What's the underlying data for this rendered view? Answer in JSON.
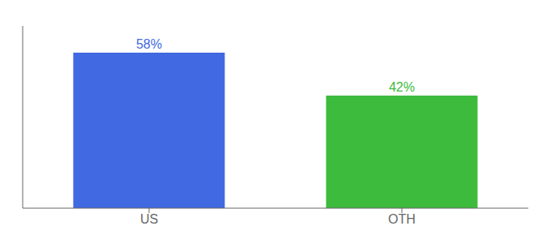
{
  "chart_data": {
    "type": "bar",
    "categories": [
      "US",
      "OTH"
    ],
    "values": [
      58,
      42
    ],
    "value_labels": [
      "58%",
      "42%"
    ],
    "data_labels": true,
    "colors": [
      "#4169E1",
      "#3dbb3d"
    ],
    "ylim": [
      0,
      68
    ],
    "tick_labels": "x",
    "grid": false
  }
}
